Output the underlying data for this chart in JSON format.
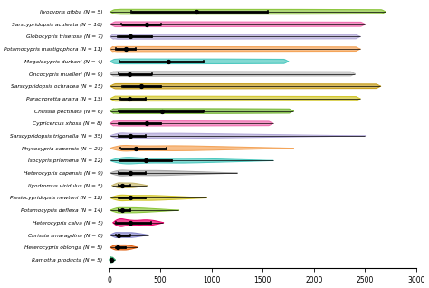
{
  "species": [
    "Ilyocypris gibba (N = 5)",
    "Sarscypridopsis aculeata (N = 16)",
    "Globocypris trisetosa (N = 7)",
    "Potamocypris mastigophora (N = 11)",
    "Megalocypris durbani (N = 4)",
    "Oncocypris muelleri (N = 9)",
    "Sarscypridopsis ochracea (N = 15)",
    "Paracypretta aratra (N = 13)",
    "Chrissia pectinata (N = 6)",
    "Cypricercus xhosa (N = 8)",
    "Sarscypridopsis trigonella (N = 35)",
    "Physocypria capensis (N = 23)",
    "Isocypris priomena (N = 12)",
    "Heterocypris capensis (N = 9)",
    "Ilyodromus viridulus (N = 5)",
    "Plesiocypridopsis newtoni (N = 12)",
    "Potamocypris deflexa (N = 14)",
    "Heterocypris calva (N = 5)",
    "Chrissia smaragdina (N = 8)",
    "Heterocypris oblonga (N = 5)",
    "Ramotha producta (N = 5)"
  ],
  "colors": [
    "#8dc63f",
    "#f06eb0",
    "#b3a9d8",
    "#f4a55a",
    "#4ec9c0",
    "#b8b8b8",
    "#c8a020",
    "#d4c830",
    "#78b83a",
    "#f06eb0",
    "#b3a9d8",
    "#f4a55a",
    "#4ec9c0",
    "#a8a8a8",
    "#c8b870",
    "#d4c830",
    "#8dc63f",
    "#e8006a",
    "#8888cc",
    "#e06010",
    "#20a060"
  ],
  "range_min": [
    10,
    10,
    10,
    10,
    10,
    10,
    10,
    10,
    10,
    10,
    10,
    10,
    10,
    10,
    30,
    10,
    10,
    40,
    10,
    10,
    5
  ],
  "range_max": [
    2700,
    2500,
    2450,
    2450,
    1750,
    2400,
    2650,
    2450,
    1800,
    1600,
    2500,
    1800,
    1600,
    1250,
    370,
    950,
    680,
    530,
    380,
    280,
    58
  ],
  "q1": [
    220,
    120,
    80,
    70,
    100,
    90,
    130,
    110,
    90,
    90,
    90,
    110,
    100,
    90,
    90,
    90,
    90,
    70,
    65,
    65,
    12
  ],
  "median": [
    850,
    370,
    210,
    160,
    580,
    200,
    310,
    200,
    520,
    370,
    210,
    260,
    360,
    210,
    130,
    210,
    125,
    210,
    95,
    82,
    22
  ],
  "q3": [
    1550,
    510,
    420,
    260,
    920,
    420,
    510,
    360,
    920,
    510,
    360,
    560,
    610,
    360,
    210,
    360,
    210,
    410,
    210,
    165,
    32
  ],
  "shape_type": [
    0,
    0,
    0,
    0,
    0,
    0,
    0,
    0,
    0,
    0,
    1,
    1,
    1,
    1,
    1,
    1,
    1,
    1,
    1,
    1,
    1
  ],
  "xlim": [
    0,
    3000
  ],
  "xticks": [
    0,
    500,
    1000,
    1500,
    2000,
    2500,
    3000
  ],
  "figsize": [
    4.74,
    3.18
  ],
  "dpi": 100
}
